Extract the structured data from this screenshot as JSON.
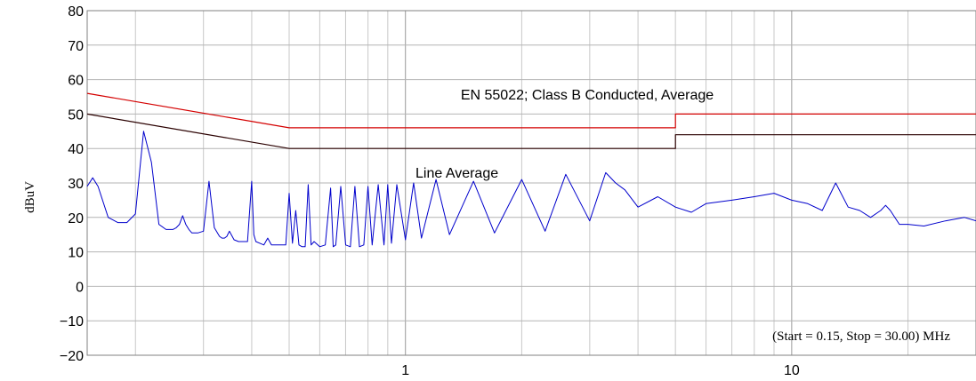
{
  "chart_data": {
    "type": "line",
    "title": "",
    "xlabel": "",
    "ylabel": "dBuV",
    "x_scale": "log",
    "xlim": [
      0.15,
      30.0
    ],
    "ylim": [
      -20,
      80
    ],
    "grid": true,
    "xtick_labels": [
      {
        "value": 1,
        "label": "1"
      },
      {
        "value": 10,
        "label": "10"
      }
    ],
    "ytick_labels": [
      {
        "value": 80,
        "label": "80"
      },
      {
        "value": 70,
        "label": "70"
      },
      {
        "value": 60,
        "label": "60"
      },
      {
        "value": 50,
        "label": "50"
      },
      {
        "value": 40,
        "label": "40"
      },
      {
        "value": 30,
        "label": "30"
      },
      {
        "value": 20,
        "label": "20"
      },
      {
        "value": 10,
        "label": "10"
      },
      {
        "value": 0,
        "label": "0"
      },
      {
        "value": -10,
        "label": "−10"
      },
      {
        "value": -20,
        "label": "−20"
      }
    ],
    "annotations": {
      "limit_label": "EN 55022; Class B Conducted, Average",
      "trace_label": "Line Average",
      "range_label": "(Start = 0.15, Stop = 30.00) MHz"
    },
    "series": [
      {
        "role": "limit-red",
        "color": "#d40000",
        "x": [
          0.15,
          0.5,
          0.5,
          5.0,
          5.0,
          30.0
        ],
        "y": [
          56,
          46,
          46,
          46,
          50,
          50
        ]
      },
      {
        "role": "limit-dark",
        "color": "#2a0000",
        "x": [
          0.15,
          0.5,
          0.5,
          5.0,
          5.0,
          30.0
        ],
        "y": [
          50,
          40,
          40,
          40,
          44,
          44
        ]
      },
      {
        "role": "measurement",
        "color": "#0000cc",
        "x": [
          0.15,
          0.155,
          0.16,
          0.17,
          0.18,
          0.19,
          0.2,
          0.21,
          0.22,
          0.23,
          0.24,
          0.25,
          0.255,
          0.26,
          0.265,
          0.27,
          0.275,
          0.28,
          0.29,
          0.3,
          0.31,
          0.32,
          0.33,
          0.335,
          0.34,
          0.345,
          0.35,
          0.36,
          0.37,
          0.38,
          0.39,
          0.4,
          0.405,
          0.41,
          0.42,
          0.43,
          0.44,
          0.45,
          0.47,
          0.49,
          0.5,
          0.51,
          0.52,
          0.53,
          0.54,
          0.55,
          0.56,
          0.57,
          0.58,
          0.6,
          0.62,
          0.64,
          0.65,
          0.66,
          0.68,
          0.7,
          0.72,
          0.74,
          0.76,
          0.78,
          0.8,
          0.82,
          0.85,
          0.88,
          0.9,
          0.92,
          0.95,
          1.0,
          1.05,
          1.1,
          1.2,
          1.3,
          1.5,
          1.7,
          2.0,
          2.3,
          2.6,
          3.0,
          3.3,
          3.5,
          3.7,
          4.0,
          4.5,
          5.0,
          5.5,
          6.0,
          7.0,
          8.0,
          9.0,
          10.0,
          11.0,
          12.0,
          13.0,
          14.0,
          15.0,
          16.0,
          17.0,
          17.5,
          18.0,
          19.0,
          20.0,
          22.0,
          25.0,
          28.0,
          30.0
        ],
        "y": [
          29,
          31.5,
          29,
          20,
          18.5,
          18.5,
          21,
          45,
          36,
          18,
          16.5,
          16.5,
          17,
          18,
          20.5,
          18,
          16.5,
          15.5,
          15.5,
          16,
          30.5,
          17,
          14.5,
          14,
          14,
          14.5,
          16,
          13.5,
          13,
          13,
          13,
          30.5,
          15,
          13,
          12.5,
          12,
          14,
          12,
          12,
          12,
          27,
          12.5,
          22,
          12,
          11.5,
          11.5,
          29.5,
          12,
          13,
          11.5,
          12,
          28.5,
          11.5,
          12,
          29,
          12,
          11.5,
          29,
          11.5,
          12,
          29,
          12,
          29.5,
          12,
          29.5,
          12.5,
          29.5,
          13.5,
          30,
          14,
          31,
          15,
          30.5,
          15.5,
          31,
          16,
          32.5,
          19,
          33,
          30,
          28,
          23,
          26,
          23,
          21.5,
          24,
          25,
          26,
          27,
          25,
          24,
          22,
          30,
          23,
          22,
          20,
          22,
          23.5,
          22,
          18,
          18,
          17.5,
          19,
          20,
          19
        ]
      }
    ]
  }
}
